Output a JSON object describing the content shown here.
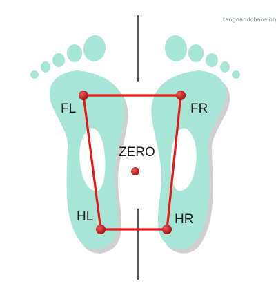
{
  "watermark": "tangoandchaos.org",
  "labels": {
    "front_left": "FL",
    "front_right": "FR",
    "center": "ZERO",
    "heel_left": "HL",
    "heel_right": "HR"
  },
  "colors": {
    "footprint_fill": "#a7e6d6",
    "footprint_edge": "#c9c9c9",
    "connector_line": "#e81717",
    "point": "#c21d1d",
    "center_axis": "#111111"
  }
}
